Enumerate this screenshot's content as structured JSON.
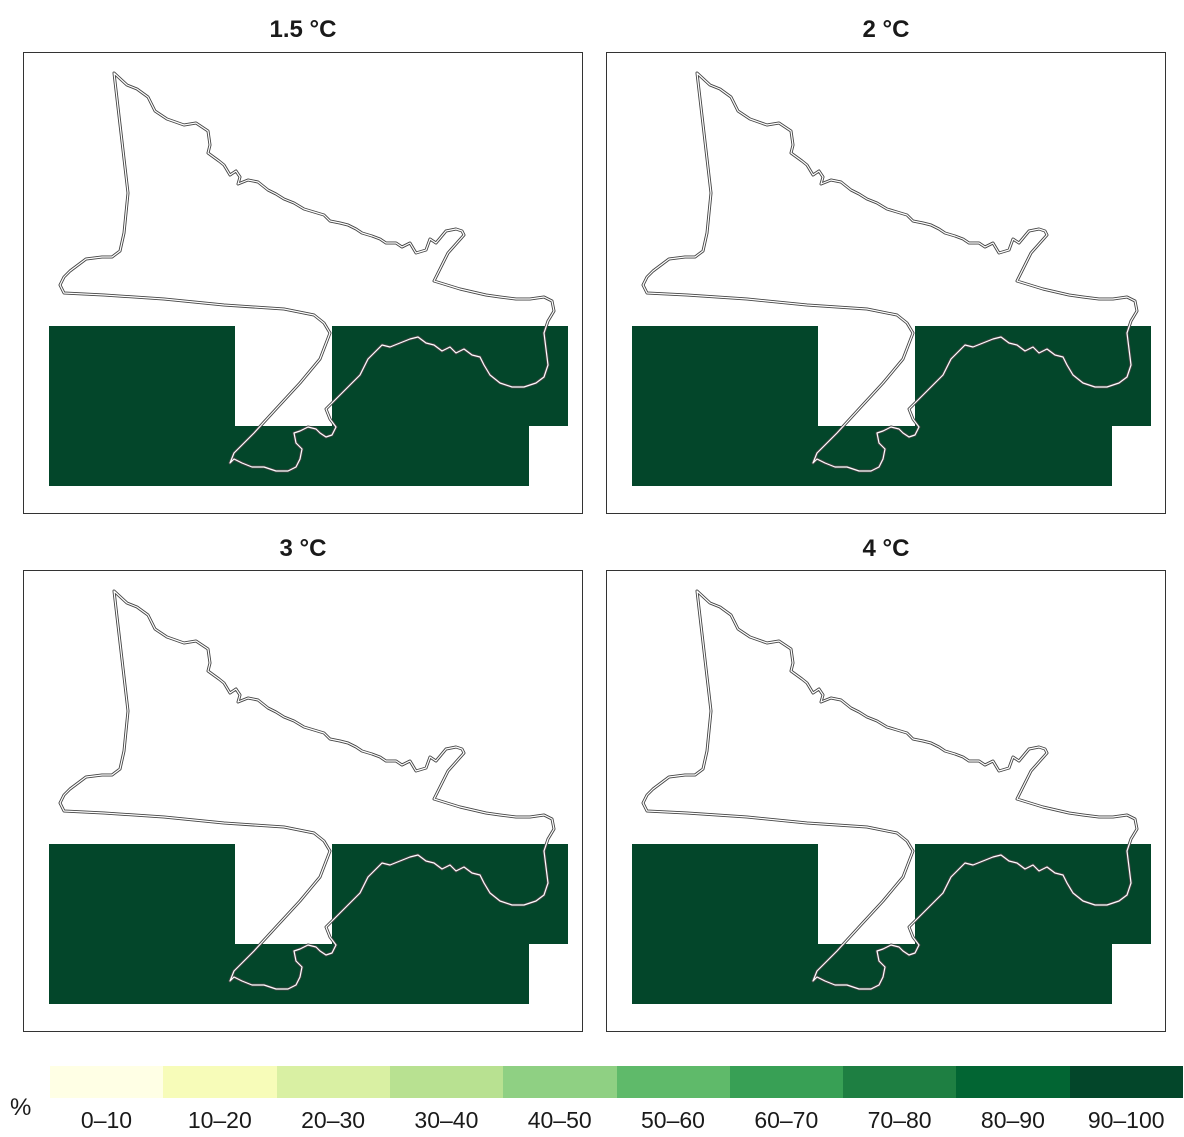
{
  "panels": [
    {
      "title": "1.5 °C"
    },
    {
      "title": "2 °C"
    },
    {
      "title": "3 °C"
    },
    {
      "title": "4 °C"
    }
  ],
  "fill_color": "#03462a",
  "legend": {
    "unit": "%",
    "bins": [
      {
        "label": "0–10",
        "color": "#ffffe5"
      },
      {
        "label": "10–20",
        "color": "#f7fcb9"
      },
      {
        "label": "20–30",
        "color": "#d9f0a3"
      },
      {
        "label": "30–40",
        "color": "#b8e191"
      },
      {
        "label": "40–50",
        "color": "#8fd083"
      },
      {
        "label": "50–60",
        "color": "#5fba6a"
      },
      {
        "label": "60–70",
        "color": "#38a055"
      },
      {
        "label": "70–80",
        "color": "#1e7f42"
      },
      {
        "label": "80–90",
        "color": "#026533"
      },
      {
        "label": "90–100",
        "color": "#03462a"
      }
    ]
  }
}
